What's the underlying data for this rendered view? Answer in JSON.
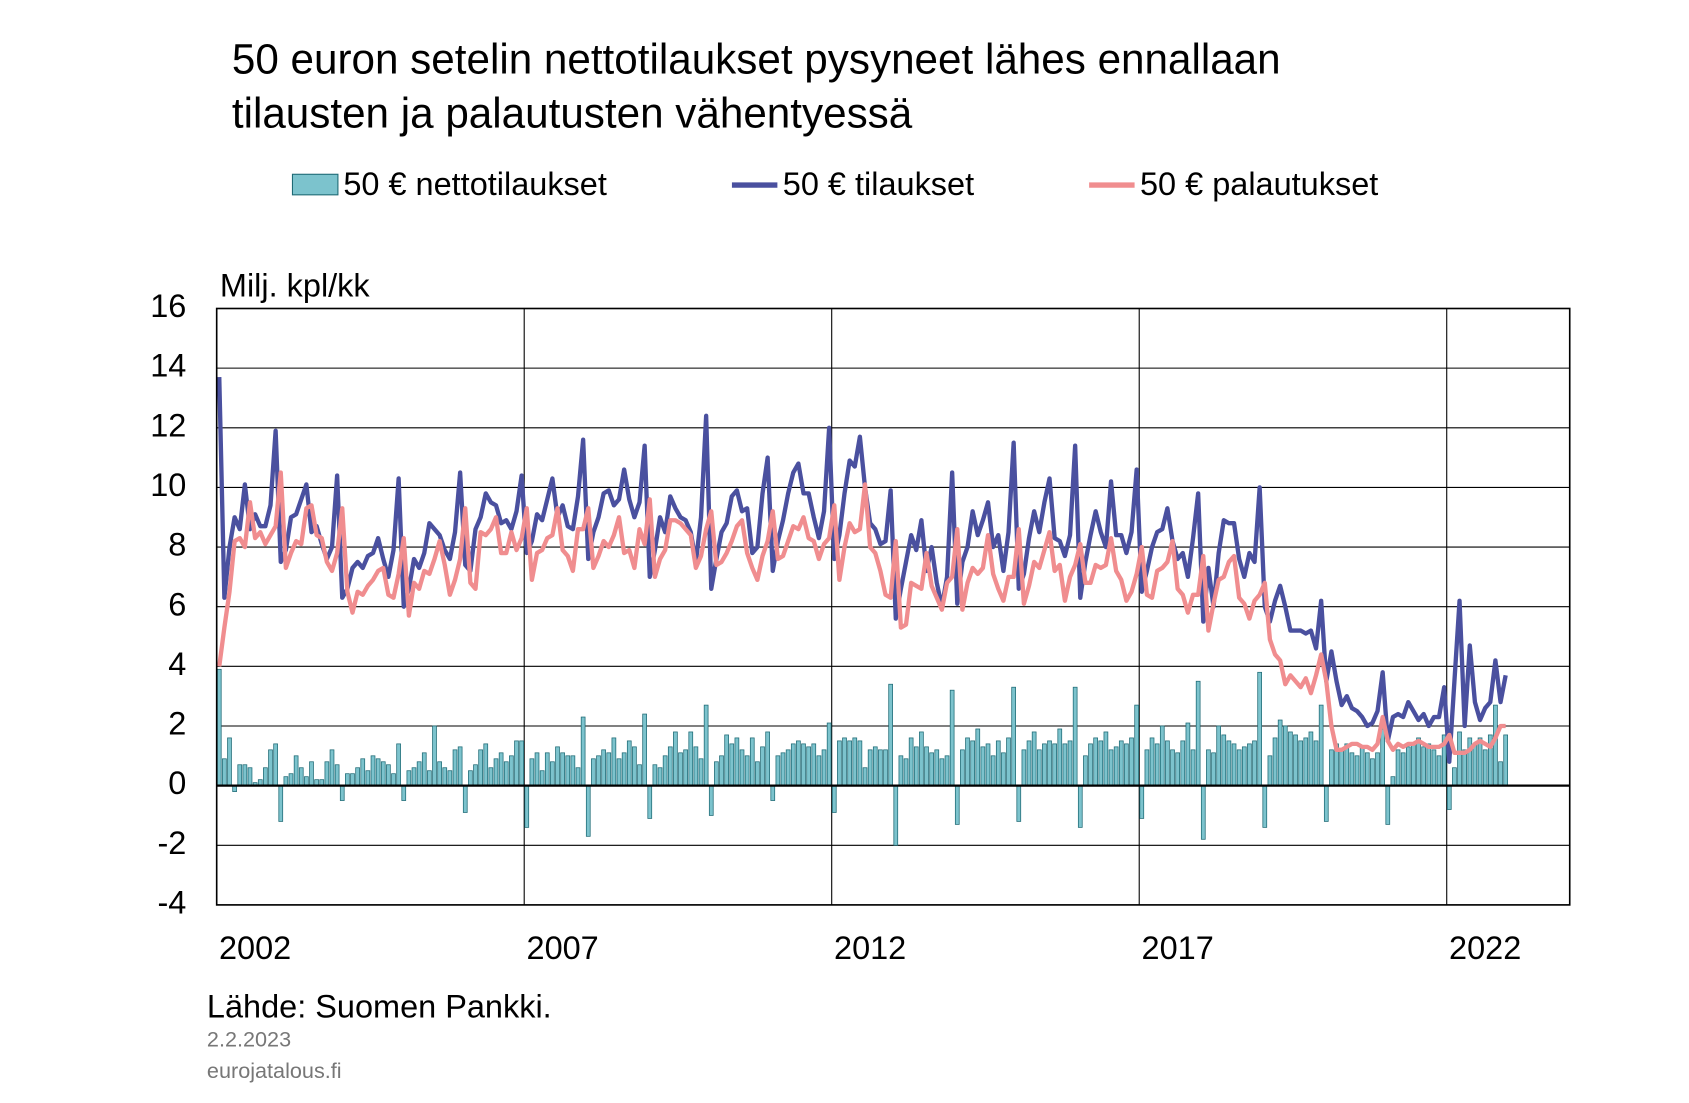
{
  "chart_data": {
    "type": "combo",
    "title": [
      "50 euron setelin nettotilaukset pysyneet lähes ennallaan",
      "tilausten ja palautusten vähentyessä"
    ],
    "y_label": "Milj. kpl/kk",
    "source": "Lähde: Suomen Pankki.",
    "date": "2.2.2023",
    "site": "eurojatalous.fi",
    "ylim": [
      -4,
      16
    ],
    "yticks": [
      -4,
      -2,
      0,
      2,
      4,
      6,
      8,
      10,
      12,
      14,
      16
    ],
    "grid": true,
    "categories": [
      null,
      null,
      null,
      null,
      null,
      null,
      null,
      "2002",
      null,
      null,
      null,
      null,
      null,
      null,
      null,
      null,
      null,
      null,
      null,
      null,
      null,
      null,
      null,
      null,
      null,
      null,
      null,
      null,
      null,
      null,
      null,
      null,
      null,
      null,
      null,
      null,
      null,
      null,
      null,
      null,
      null,
      null,
      null,
      null,
      null,
      null,
      null,
      null,
      null,
      null,
      null,
      null,
      null,
      null,
      null,
      null,
      null,
      null,
      null,
      null,
      null,
      null,
      null,
      null,
      null,
      null,
      null,
      "2007",
      null,
      null,
      null,
      null,
      null,
      null,
      null,
      null,
      null,
      null,
      null,
      null,
      null,
      null,
      null,
      null,
      null,
      null,
      null,
      null,
      null,
      null,
      null,
      null,
      null,
      null,
      null,
      null,
      null,
      null,
      null,
      null,
      null,
      null,
      null,
      null,
      null,
      null,
      null,
      null,
      null,
      null,
      null,
      null,
      null,
      null,
      null,
      null,
      null,
      null,
      null,
      null,
      null,
      null,
      null,
      null,
      null,
      null,
      null,
      "2012",
      null,
      null,
      null,
      null,
      null,
      null,
      null,
      null,
      null,
      null,
      null,
      null,
      null,
      null,
      null,
      null,
      null,
      null,
      null,
      null,
      null,
      null,
      null,
      null,
      null,
      null,
      null,
      null,
      null,
      null,
      null,
      null,
      null,
      null,
      null,
      null,
      null,
      null,
      null,
      null,
      null,
      null,
      null,
      null,
      null,
      null,
      null,
      null,
      null,
      null,
      null,
      null,
      null,
      null,
      null,
      null,
      null,
      null,
      null,
      "2017",
      null,
      null,
      null,
      null,
      null,
      null,
      null,
      null,
      null,
      null,
      null,
      null,
      null,
      null,
      null,
      null,
      null,
      null,
      null,
      null,
      null,
      null,
      null,
      null,
      null,
      null,
      null,
      null,
      null,
      null,
      null,
      null,
      null,
      null,
      null,
      null,
      null,
      null,
      null,
      null,
      null,
      null,
      null,
      null,
      null,
      null,
      null,
      null,
      null,
      null,
      null,
      null,
      null,
      null,
      null,
      null,
      null,
      null,
      null,
      "2022",
      null,
      null,
      null,
      null
    ],
    "series": [
      {
        "name": "50 € nettotilaukset",
        "type": "bar",
        "color": "#7cc3cd",
        "values": [
          3.9,
          0.9,
          1.6,
          -0.2,
          0.7,
          0.7,
          0.6,
          0.1,
          0.2,
          0.6,
          1.2,
          1.4,
          -1.2,
          0.3,
          0.4,
          1.0,
          0.6,
          0.3,
          0.8,
          0.2,
          0.2,
          0.8,
          1.2,
          0.7,
          -0.5,
          0.4,
          0.4,
          0.6,
          0.9,
          0.5,
          1.0,
          0.9,
          0.8,
          0.7,
          0.4,
          1.4,
          -0.5,
          0.5,
          0.6,
          0.8,
          1.1,
          0.5,
          2.0,
          0.8,
          0.6,
          0.5,
          1.2,
          1.3,
          -0.9,
          0.5,
          0.7,
          1.2,
          1.4,
          0.6,
          0.9,
          1.1,
          0.8,
          1.0,
          1.5,
          1.5,
          -1.4,
          0.9,
          1.1,
          0.5,
          1.1,
          0.8,
          1.3,
          1.1,
          1.0,
          1.0,
          0.6,
          2.3,
          -1.7,
          0.9,
          1.0,
          1.2,
          1.1,
          1.6,
          0.9,
          1.1,
          1.5,
          1.3,
          0.7,
          2.4,
          -1.1,
          0.7,
          0.6,
          1.0,
          1.3,
          1.8,
          1.1,
          1.2,
          1.8,
          1.3,
          0.9,
          2.7,
          -1.0,
          0.8,
          1.0,
          1.7,
          1.4,
          1.6,
          1.2,
          1.0,
          1.6,
          0.8,
          1.3,
          1.8,
          -0.5,
          1.0,
          1.1,
          1.2,
          1.4,
          1.5,
          1.4,
          1.3,
          1.4,
          1.0,
          1.2,
          2.1,
          -0.9,
          1.5,
          1.6,
          1.5,
          1.6,
          1.5,
          0.6,
          1.2,
          1.3,
          1.2,
          1.2,
          3.4,
          -2.0,
          1.0,
          0.9,
          1.6,
          1.3,
          1.8,
          1.3,
          1.1,
          1.2,
          0.9,
          1.0,
          3.2,
          -1.3,
          1.2,
          1.6,
          1.5,
          1.9,
          1.3,
          1.4,
          1.0,
          1.5,
          1.1,
          1.6,
          3.3,
          -1.2,
          1.2,
          1.5,
          1.8,
          1.2,
          1.4,
          1.5,
          1.4,
          1.9,
          1.4,
          1.5,
          3.3,
          -1.4,
          1.0,
          1.4,
          1.6,
          1.5,
          1.8,
          1.2,
          1.3,
          1.5,
          1.4,
          1.6,
          2.7,
          -1.1,
          1.2,
          1.6,
          1.4,
          2.0,
          1.5,
          1.2,
          1.1,
          1.5,
          2.1,
          1.2,
          3.5,
          -1.8,
          1.2,
          1.1,
          2.0,
          1.7,
          1.5,
          1.4,
          1.2,
          1.3,
          1.4,
          1.5,
          3.8,
          -1.4,
          1.0,
          1.6,
          2.2,
          2.0,
          1.8,
          1.7,
          1.5,
          1.6,
          1.8,
          1.5,
          2.7,
          -1.2,
          1.2,
          1.4,
          1.2,
          1.4,
          1.1,
          1.0,
          1.3,
          1.1,
          0.9,
          1.1,
          1.9,
          -1.3,
          0.3,
          1.2,
          1.1,
          1.3,
          1.4,
          1.6,
          1.3,
          1.4,
          1.2,
          1.0,
          1.7,
          -0.8,
          0.6,
          1.8,
          1.2,
          1.6,
          1.4,
          1.6,
          1.2,
          1.7,
          2.7,
          0.8,
          1.7
        ]
      },
      {
        "name": "50 € tilaukset",
        "type": "line",
        "color": "#4a509f",
        "values": [
          13.7,
          6.3,
          8.0,
          9.0,
          8.6,
          10.1,
          8.6,
          9.1,
          8.7,
          8.7,
          9.4,
          11.9,
          7.5,
          7.9,
          9.0,
          9.1,
          9.6,
          10.1,
          8.5,
          8.7,
          8.1,
          7.6,
          8.0,
          10.4,
          6.3,
          6.6,
          7.3,
          7.5,
          7.3,
          7.7,
          7.8,
          8.3,
          7.6,
          7.0,
          7.9,
          10.3,
          6.0,
          6.6,
          7.6,
          7.3,
          7.8,
          8.8,
          8.6,
          8.4,
          7.9,
          7.6,
          8.5,
          10.5,
          7.4,
          7.2,
          8.6,
          9.0,
          9.8,
          9.5,
          9.4,
          8.8,
          8.9,
          8.6,
          9.2,
          10.4,
          7.8,
          8.2,
          9.1,
          8.9,
          9.6,
          10.3,
          9.0,
          9.4,
          8.7,
          8.6,
          9.7,
          11.6,
          7.6,
          8.5,
          9.0,
          9.8,
          9.9,
          9.4,
          9.6,
          10.6,
          9.6,
          9.0,
          9.5,
          11.4,
          7.0,
          7.9,
          9.0,
          8.5,
          9.7,
          9.3,
          9.0,
          8.9,
          8.5,
          7.5,
          9.0,
          12.4,
          6.6,
          7.6,
          8.5,
          8.8,
          9.7,
          9.9,
          9.2,
          9.3,
          7.8,
          8.0,
          9.8,
          11.0,
          7.2,
          8.2,
          8.9,
          9.8,
          10.5,
          10.8,
          9.8,
          9.8,
          9.0,
          8.3,
          9.2,
          12.0,
          7.6,
          8.4,
          9.8,
          10.9,
          10.7,
          11.7,
          10.0,
          8.8,
          8.6,
          8.1,
          8.2,
          9.9,
          5.6,
          6.6,
          7.5,
          8.4,
          7.9,
          8.9,
          7.2,
          8.0,
          6.8,
          6.0,
          7.0,
          10.5,
          6.1,
          7.5,
          8.0,
          9.2,
          8.4,
          8.9,
          9.5,
          8.0,
          8.4,
          7.2,
          8.5,
          11.5,
          6.6,
          7.1,
          8.3,
          9.2,
          8.5,
          9.5,
          10.3,
          8.3,
          8.2,
          7.7,
          8.4,
          11.4,
          6.3,
          7.5,
          8.4,
          9.2,
          8.5,
          8.0,
          10.2,
          8.4,
          8.4,
          7.8,
          8.5,
          10.6,
          6.5,
          7.2,
          8.0,
          8.5,
          8.6,
          9.3,
          8.2,
          7.6,
          7.8,
          7.0,
          8.3,
          9.8,
          5.5,
          7.3,
          6.0,
          7.8,
          8.9,
          8.8,
          8.8,
          7.6,
          7.0,
          7.8,
          7.5,
          10.0,
          6.0,
          5.5,
          6.2,
          6.7,
          6.0,
          5.2,
          5.2,
          5.2,
          5.1,
          5.2,
          4.6,
          6.2,
          3.5,
          4.5,
          3.5,
          2.7,
          3.0,
          2.6,
          2.5,
          2.3,
          2.0,
          2.1,
          2.5,
          3.8,
          1.5,
          2.3,
          2.4,
          2.3,
          2.8,
          2.5,
          2.2,
          2.4,
          2.0,
          2.3,
          2.3,
          3.3,
          0.8,
          3.5,
          6.2,
          2.0,
          4.7,
          2.8,
          2.2,
          2.6,
          2.8,
          4.2,
          2.8,
          3.7
        ]
      },
      {
        "name": "50 € palautukset",
        "type": "line",
        "color": "#f08d8f",
        "values": [
          4.0,
          5.3,
          6.5,
          8.2,
          8.3,
          8.0,
          9.5,
          8.3,
          8.5,
          8.1,
          8.4,
          8.7,
          10.5,
          7.3,
          7.8,
          8.2,
          8.1,
          9.3,
          9.4,
          8.4,
          8.3,
          7.5,
          7.2,
          7.8,
          9.3,
          6.5,
          5.8,
          6.5,
          6.4,
          6.7,
          6.9,
          7.2,
          7.3,
          6.4,
          6.3,
          7.1,
          8.3,
          5.7,
          6.8,
          6.6,
          7.2,
          7.1,
          7.6,
          8.2,
          7.4,
          6.4,
          6.9,
          7.6,
          9.3,
          6.8,
          6.6,
          8.5,
          8.4,
          8.6,
          9.0,
          7.8,
          7.8,
          8.5,
          7.9,
          8.3,
          9.3,
          6.9,
          7.8,
          7.9,
          8.3,
          8.4,
          9.3,
          7.9,
          7.7,
          7.2,
          8.6,
          8.6,
          9.3,
          7.3,
          7.7,
          8.2,
          8.0,
          8.4,
          9.0,
          7.8,
          7.9,
          7.3,
          8.6,
          8.1,
          9.6,
          7.0,
          7.6,
          7.9,
          8.9,
          8.9,
          8.8,
          8.6,
          8.4,
          7.3,
          7.7,
          8.6,
          9.2,
          7.4,
          7.5,
          7.8,
          8.2,
          8.7,
          8.9,
          7.8,
          7.3,
          6.9,
          7.7,
          8.2,
          9.2,
          7.6,
          7.7,
          8.2,
          8.7,
          8.6,
          9.0,
          8.3,
          8.2,
          7.6,
          8.1,
          8.3,
          9.4,
          6.9,
          8.0,
          8.8,
          8.5,
          8.6,
          10.1,
          8.0,
          7.8,
          7.2,
          6.4,
          6.3,
          8.2,
          5.3,
          5.4,
          6.8,
          6.7,
          6.6,
          7.8,
          6.7,
          6.3,
          5.9,
          6.8,
          7.0,
          8.6,
          5.9,
          6.8,
          7.3,
          7.1,
          7.3,
          8.4,
          7.1,
          6.6,
          6.2,
          7.0,
          7.0,
          8.6,
          6.1,
          6.7,
          7.5,
          7.3,
          7.9,
          8.5,
          7.2,
          7.4,
          6.2,
          7.0,
          7.4,
          8.1,
          6.8,
          6.8,
          7.4,
          7.3,
          7.4,
          8.3,
          7.2,
          6.9,
          6.2,
          6.5,
          7.1,
          8.0,
          6.4,
          6.3,
          7.2,
          7.3,
          7.5,
          8.2,
          6.6,
          6.4,
          5.8,
          6.4,
          6.4,
          7.7,
          5.2,
          6.1,
          6.9,
          7.0,
          7.5,
          7.7,
          6.3,
          6.1,
          5.6,
          6.2,
          6.4,
          6.8,
          4.9,
          4.4,
          4.2,
          3.4,
          3.7,
          3.5,
          3.3,
          3.6,
          3.1,
          3.7,
          4.4,
          3.5,
          2.0,
          1.2,
          1.2,
          1.3,
          1.4,
          1.4,
          1.3,
          1.3,
          1.2,
          1.4,
          2.3,
          1.5,
          1.2,
          1.4,
          1.3,
          1.4,
          1.4,
          1.5,
          1.4,
          1.3,
          1.3,
          1.3,
          1.4,
          1.7,
          1.1,
          1.1,
          1.1,
          1.2,
          1.4,
          1.5,
          1.4,
          1.3,
          1.6,
          2.0,
          2.0
        ]
      }
    ]
  }
}
